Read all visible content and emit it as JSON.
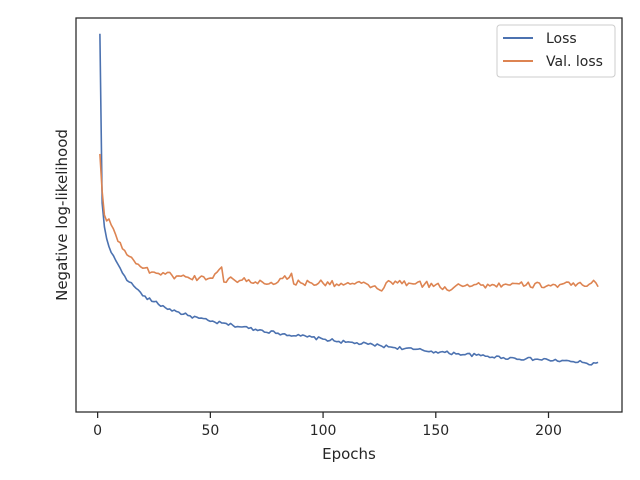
{
  "chart_data": {
    "type": "line",
    "xlabel": "Epochs",
    "ylabel": "Negative log-likelihood",
    "xlim": [
      -9.6,
      232.6
    ],
    "ylim": [
      0.0,
      1.0
    ],
    "x_ticks": [
      0,
      50,
      100,
      150,
      200
    ],
    "y_ticks_shown": false,
    "grid": false,
    "legend_position": "top-right",
    "x_range": [
      1,
      222
    ],
    "series": [
      {
        "name": "Loss",
        "color": "#4c72b0",
        "points": [
          [
            1,
            0.96
          ],
          [
            2,
            0.53
          ],
          [
            3,
            0.47
          ],
          [
            4,
            0.44
          ],
          [
            5,
            0.42
          ],
          [
            6,
            0.405
          ],
          [
            8,
            0.385
          ],
          [
            10,
            0.365
          ],
          [
            12,
            0.345
          ],
          [
            14,
            0.33
          ],
          [
            16,
            0.32
          ],
          [
            18,
            0.31
          ],
          [
            20,
            0.295
          ],
          [
            25,
            0.28
          ],
          [
            30,
            0.265
          ],
          [
            35,
            0.255
          ],
          [
            40,
            0.245
          ],
          [
            45,
            0.238
          ],
          [
            50,
            0.23
          ],
          [
            60,
            0.22
          ],
          [
            70,
            0.21
          ],
          [
            80,
            0.2
          ],
          [
            90,
            0.193
          ],
          [
            100,
            0.185
          ],
          [
            110,
            0.177
          ],
          [
            120,
            0.172
          ],
          [
            130,
            0.165
          ],
          [
            140,
            0.159
          ],
          [
            150,
            0.153
          ],
          [
            160,
            0.148
          ],
          [
            170,
            0.143
          ],
          [
            180,
            0.138
          ],
          [
            190,
            0.135
          ],
          [
            200,
            0.132
          ],
          [
            210,
            0.128
          ],
          [
            215,
            0.126
          ],
          [
            218,
            0.12
          ],
          [
            220,
            0.125
          ],
          [
            222,
            0.126
          ]
        ]
      },
      {
        "name": "Val. loss",
        "color": "#dd8452",
        "points": [
          [
            1,
            0.655
          ],
          [
            2,
            0.56
          ],
          [
            3,
            0.5
          ],
          [
            4,
            0.485
          ],
          [
            5,
            0.49
          ],
          [
            6,
            0.475
          ],
          [
            8,
            0.45
          ],
          [
            10,
            0.43
          ],
          [
            12,
            0.41
          ],
          [
            14,
            0.395
          ],
          [
            16,
            0.385
          ],
          [
            18,
            0.375
          ],
          [
            20,
            0.365
          ],
          [
            25,
            0.355
          ],
          [
            30,
            0.35
          ],
          [
            35,
            0.345
          ],
          [
            40,
            0.342
          ],
          [
            45,
            0.34
          ],
          [
            50,
            0.34
          ],
          [
            55,
            0.368
          ],
          [
            56,
            0.33
          ],
          [
            60,
            0.338
          ],
          [
            70,
            0.33
          ],
          [
            80,
            0.33
          ],
          [
            86,
            0.352
          ],
          [
            87,
            0.325
          ],
          [
            90,
            0.328
          ],
          [
            100,
            0.327
          ],
          [
            110,
            0.325
          ],
          [
            120,
            0.323
          ],
          [
            125,
            0.31
          ],
          [
            130,
            0.33
          ],
          [
            140,
            0.325
          ],
          [
            150,
            0.323
          ],
          [
            155,
            0.31
          ],
          [
            160,
            0.325
          ],
          [
            170,
            0.322
          ],
          [
            180,
            0.323
          ],
          [
            190,
            0.322
          ],
          [
            200,
            0.322
          ],
          [
            210,
            0.322
          ],
          [
            221,
            0.328
          ],
          [
            222,
            0.318
          ]
        ]
      }
    ]
  }
}
